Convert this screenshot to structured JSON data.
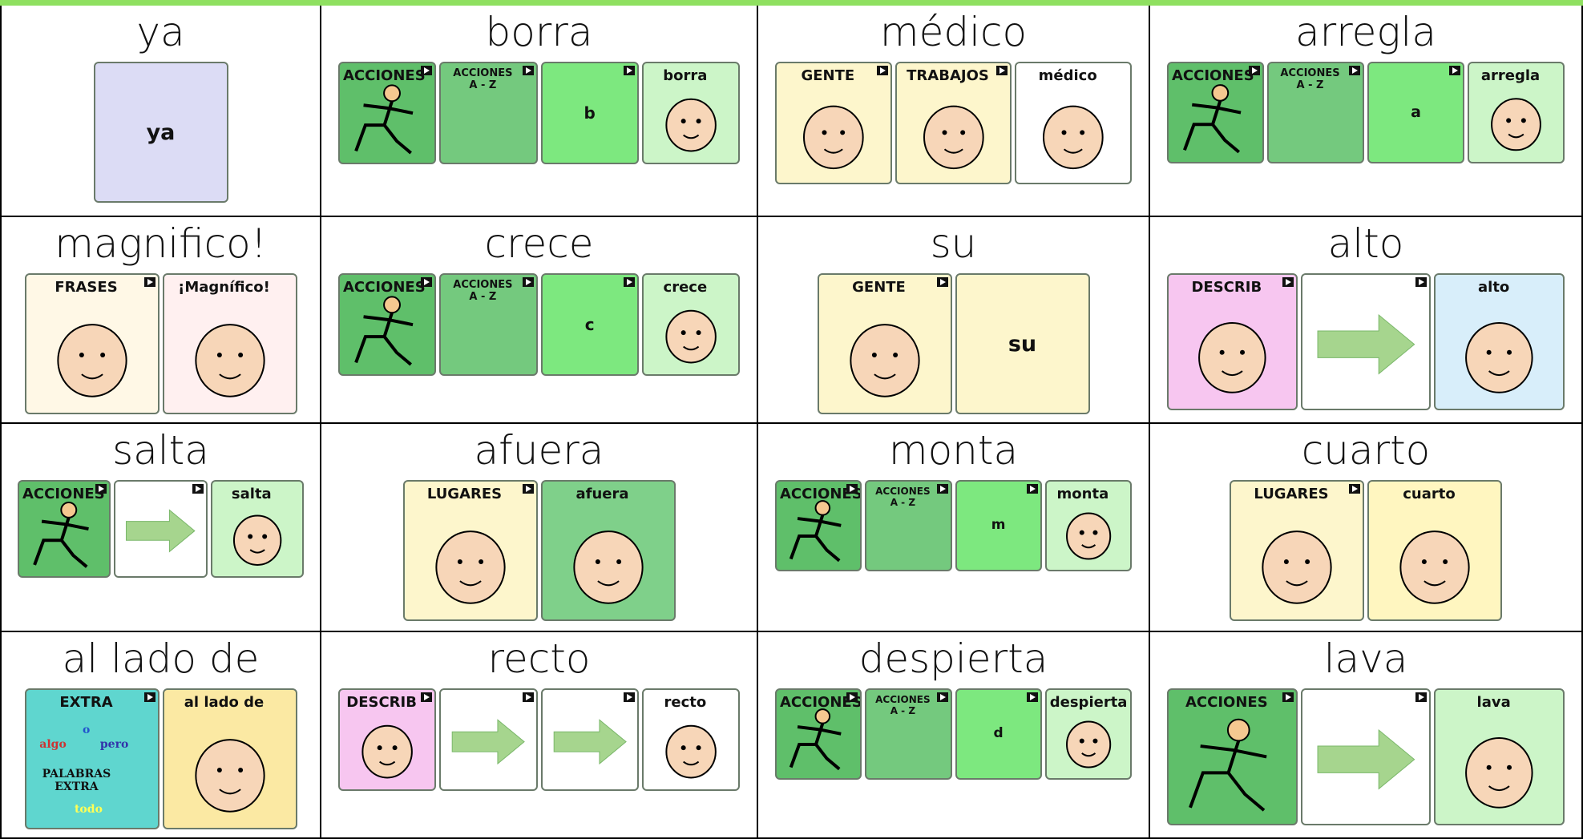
{
  "rows": [
    {
      "cells": [
        {
          "title": "ya",
          "tiles": [
            {
              "label": "ya",
              "color": "#dcdcf5"
            }
          ]
        },
        {
          "title": "borra",
          "tiles": [
            {
              "label": "ACCIONES",
              "color": "#5fbf6a"
            },
            {
              "label": "ACCIONES\nA - Z",
              "color": "#74c97e"
            },
            {
              "label": "b",
              "color": "#7de87f"
            },
            {
              "label": "borra",
              "color": "#ccf5c8"
            }
          ]
        },
        {
          "title": "médico",
          "tiles": [
            {
              "label": "GENTE",
              "color": "#fdf6cc"
            },
            {
              "label": "TRABAJOS",
              "color": "#fdf6cc"
            },
            {
              "label": "médico",
              "color": "#ffffff"
            }
          ]
        },
        {
          "title": "arregla",
          "tiles": [
            {
              "label": "ACCIONES",
              "color": "#5fbf6a"
            },
            {
              "label": "ACCIONES\nA - Z",
              "color": "#74c97e"
            },
            {
              "label": "a",
              "color": "#7de87f"
            },
            {
              "label": "arregla",
              "color": "#ccf5c8"
            }
          ]
        }
      ]
    },
    {
      "cells": [
        {
          "title": "magnifico!",
          "tiles": [
            {
              "label": "FRASES",
              "color": "#fff8e6"
            },
            {
              "label": "¡Magnífico!",
              "color": "#fff0f0"
            }
          ]
        },
        {
          "title": "crece",
          "tiles": [
            {
              "label": "ACCIONES",
              "color": "#5fbf6a"
            },
            {
              "label": "ACCIONES\nA - Z",
              "color": "#74c97e"
            },
            {
              "label": "c",
              "color": "#7de87f"
            },
            {
              "label": "crece",
              "color": "#ccf5c8"
            }
          ]
        },
        {
          "title": "su",
          "tiles": [
            {
              "label": "GENTE",
              "color": "#fdf6cc"
            },
            {
              "label": "su",
              "color": "#fdf6cc"
            }
          ]
        },
        {
          "title": "alto",
          "tiles": [
            {
              "label": "DESCRIB",
              "color": "#f7c6f0"
            },
            {
              "color": "#ffffff"
            },
            {
              "label": "alto",
              "color": "#d8eefa"
            }
          ]
        }
      ]
    },
    {
      "cells": [
        {
          "title": "salta",
          "tiles": [
            {
              "label": "ACCIONES",
              "color": "#5fbf6a"
            },
            {
              "color": "#ffffff"
            },
            {
              "label": "salta",
              "color": "#ccf5c8"
            }
          ]
        },
        {
          "title": "afuera",
          "tiles": [
            {
              "label": "LUGARES",
              "color": "#fdf6cc"
            },
            {
              "label": "afuera",
              "color": "#7fd08a"
            }
          ]
        },
        {
          "title": "monta",
          "tiles": [
            {
              "label": "ACCIONES",
              "color": "#5fbf6a"
            },
            {
              "label": "ACCIONES\nA - Z",
              "color": "#74c97e"
            },
            {
              "label": "m",
              "color": "#7de87f"
            },
            {
              "label": "monta",
              "color": "#ccf5c8"
            }
          ]
        },
        {
          "title": "cuarto",
          "tiles": [
            {
              "label": "LUGARES",
              "color": "#fdf6cc"
            },
            {
              "label": "cuarto",
              "color": "#fff6c0"
            }
          ]
        }
      ]
    },
    {
      "cells": [
        {
          "title": "al lado de",
          "tiles": [
            {
              "label": "EXTRA",
              "color": "#5fd6cf",
              "inner": [
                "o",
                "algo",
                "pero",
                "PALABRAS\nEXTRA",
                "todo"
              ]
            },
            {
              "label": "al lado de",
              "color": "#fbe9a3"
            }
          ]
        },
        {
          "title": "recto",
          "tiles": [
            {
              "label": "DESCRIB",
              "color": "#f7c6f0"
            },
            {
              "color": "#ffffff"
            },
            {
              "color": "#ffffff"
            },
            {
              "label": "recto",
              "color": "#ffffff"
            }
          ]
        },
        {
          "title": "despierta",
          "tiles": [
            {
              "label": "ACCIONES",
              "color": "#5fbf6a"
            },
            {
              "label": "ACCIONES\nA - Z",
              "color": "#74c97e"
            },
            {
              "label": "d",
              "color": "#7de87f"
            },
            {
              "label": "despierta",
              "color": "#ccf5c8"
            }
          ]
        },
        {
          "title": "lava",
          "tiles": [
            {
              "label": "ACCIONES",
              "color": "#5fbf6a"
            },
            {
              "color": "#ffffff"
            },
            {
              "label": "lava",
              "color": "#ccf5c8"
            }
          ]
        }
      ]
    }
  ]
}
